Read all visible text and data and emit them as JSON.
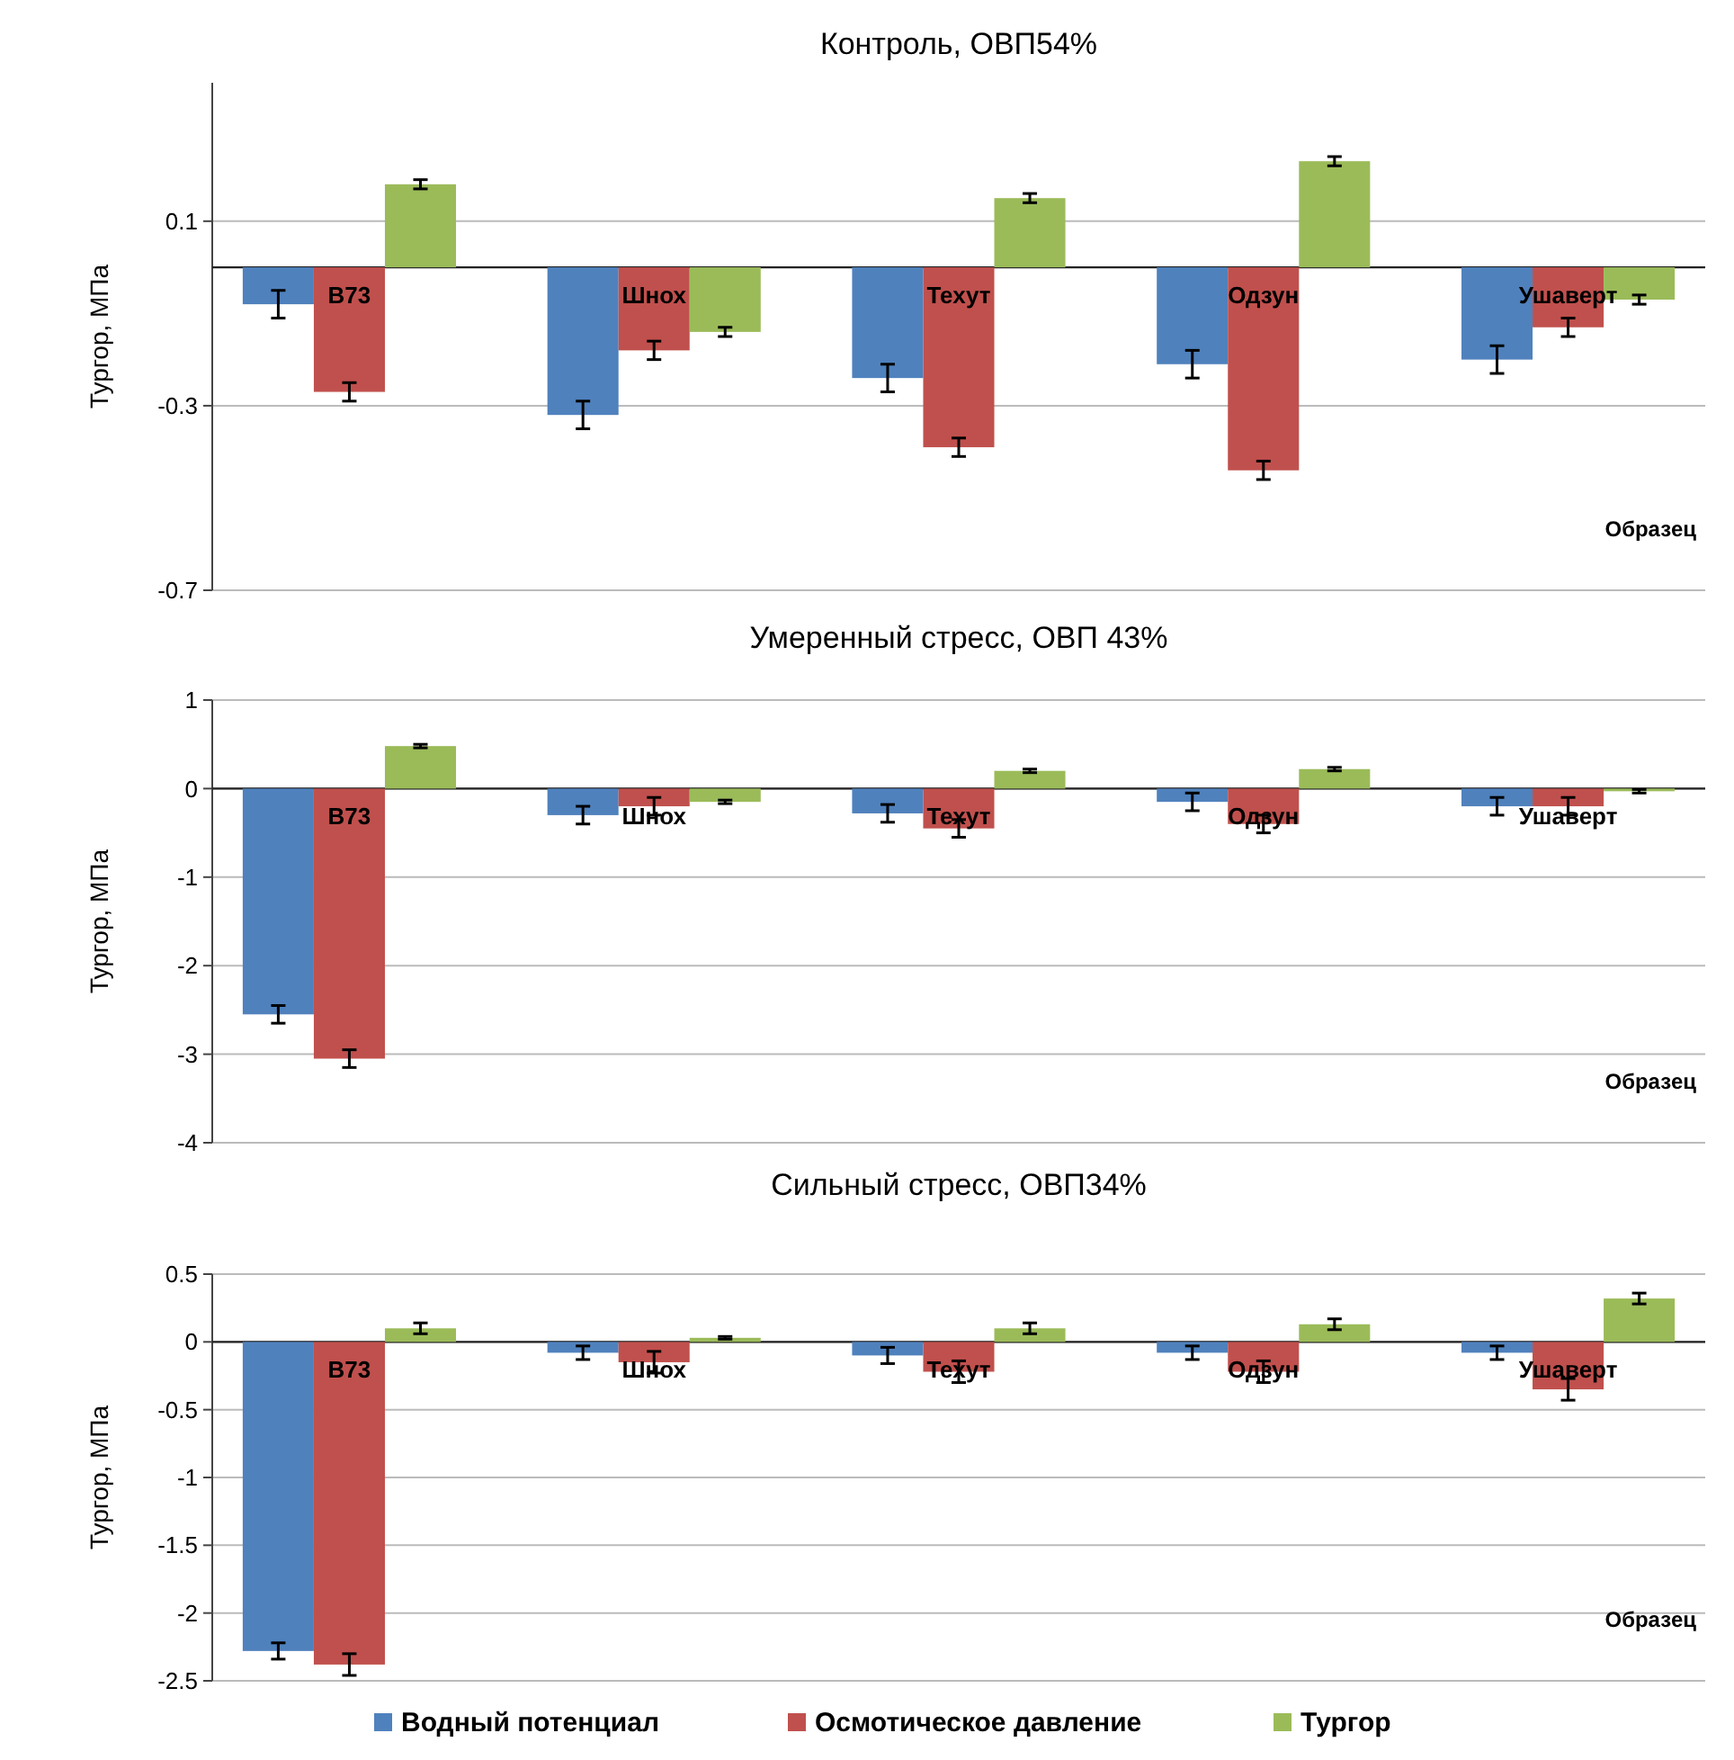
{
  "chart_data": [
    {
      "type": "bar",
      "title": "Контроль, ОВП54%",
      "ylabel": "Тургор, МПа",
      "xlabel": "Образец",
      "categories": [
        "B73",
        "Шнох",
        "Техут",
        "Одзун",
        "Ушаверт"
      ],
      "series": [
        {
          "color": "#4f81bd",
          "values": [
            -0.08,
            -0.32,
            -0.24,
            -0.21,
            -0.2
          ],
          "errors": [
            0.03,
            0.03,
            0.03,
            0.03,
            0.03
          ]
        },
        {
          "color": "#c0504d",
          "values": [
            -0.27,
            -0.18,
            -0.39,
            -0.44,
            -0.13
          ],
          "errors": [
            0.02,
            0.02,
            0.02,
            0.02,
            0.02
          ]
        },
        {
          "color": "#9bbb59",
          "values": [
            0.18,
            -0.14,
            0.15,
            0.23,
            -0.07
          ],
          "errors": [
            0.01,
            0.01,
            0.01,
            0.01,
            0.01
          ]
        }
      ],
      "ylim": [
        -0.7,
        0.4
      ],
      "yticks": [
        -0.7,
        -0.3,
        0.1
      ],
      "grid": "y",
      "legend": false
    },
    {
      "type": "bar",
      "title": "Умеренный стресс, ОВП 43%",
      "ylabel": "Тургор, МПа",
      "xlabel": "Образец",
      "categories": [
        "B73",
        "Шнох",
        "Техут",
        "Одзун",
        "Ушаверт"
      ],
      "series": [
        {
          "color": "#4f81bd",
          "values": [
            -2.55,
            -0.3,
            -0.28,
            -0.15,
            -0.2
          ],
          "errors": [
            0.1,
            0.1,
            0.1,
            0.1,
            0.1
          ]
        },
        {
          "color": "#c0504d",
          "values": [
            -3.05,
            -0.2,
            -0.45,
            -0.4,
            -0.2
          ],
          "errors": [
            0.1,
            0.1,
            0.1,
            0.1,
            0.1
          ]
        },
        {
          "color": "#9bbb59",
          "values": [
            0.48,
            -0.15,
            0.2,
            0.22,
            -0.03
          ],
          "errors": [
            0.02,
            0.02,
            0.02,
            0.02,
            0.02
          ]
        }
      ],
      "ylim": [
        -4,
        1
      ],
      "yticks": [
        -4,
        -3,
        -2,
        -1,
        0,
        1
      ],
      "grid": "y",
      "legend": false
    },
    {
      "type": "bar",
      "title": "Сильный стресс, ОВП34%",
      "ylabel": "Тургор, МПа",
      "xlabel": "Образец",
      "categories": [
        "B73",
        "Шнох",
        "Техут",
        "Одзун",
        "Ушаверт"
      ],
      "series": [
        {
          "name": "Водный потенциал",
          "color": "#4f81bd",
          "values": [
            -2.28,
            -0.08,
            -0.1,
            -0.08,
            -0.08
          ],
          "errors": [
            0.06,
            0.05,
            0.06,
            0.05,
            0.05
          ]
        },
        {
          "name": "Осмотическое давление",
          "color": "#c0504d",
          "values": [
            -2.38,
            -0.15,
            -0.22,
            -0.22,
            -0.35
          ],
          "errors": [
            0.08,
            0.08,
            0.08,
            0.08,
            0.08
          ]
        },
        {
          "name": "Тургор",
          "color": "#9bbb59",
          "values": [
            0.1,
            0.03,
            0.1,
            0.13,
            0.32
          ],
          "errors": [
            0.04,
            0.01,
            0.04,
            0.04,
            0.04
          ]
        }
      ],
      "ylim": [
        -2.5,
        0.5
      ],
      "yticks": [
        -2.5,
        -2,
        -1.5,
        -1,
        -0.5,
        0,
        0.5
      ],
      "grid": "y",
      "legend": "bottom"
    }
  ]
}
